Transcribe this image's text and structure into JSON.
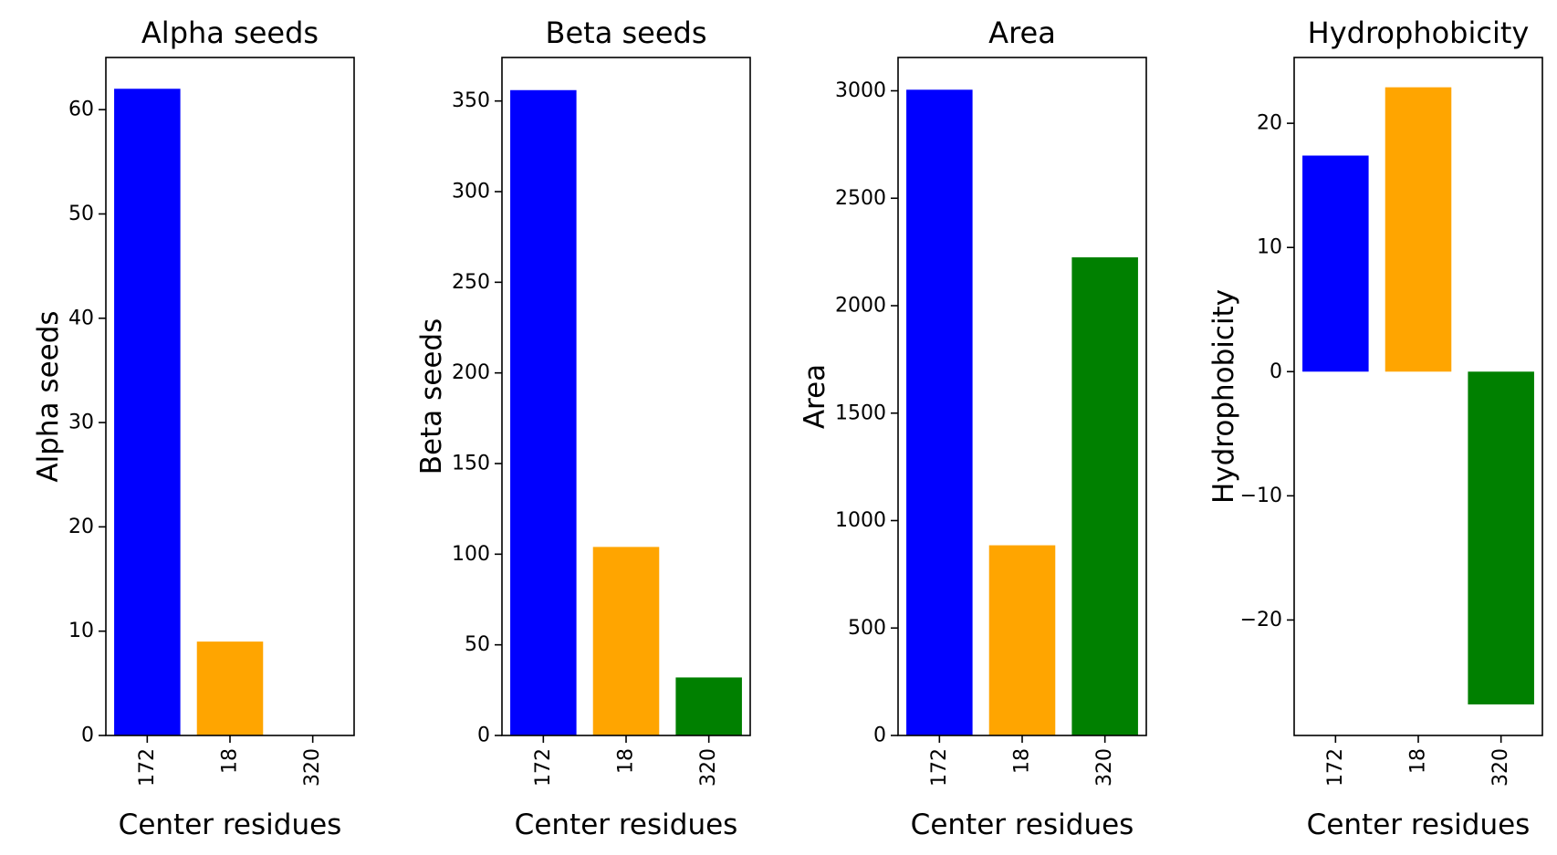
{
  "chart_data": [
    {
      "type": "bar",
      "title": "Alpha seeds",
      "xlabel": "Center residues",
      "ylabel": "Alpha seeds",
      "categories": [
        "172",
        "18",
        "320"
      ],
      "values": [
        62,
        9,
        0
      ],
      "colors": [
        "#0000ff",
        "#ffa500",
        "#008000"
      ],
      "ylim": [
        0,
        65
      ],
      "yticks": [
        0,
        10,
        20,
        30,
        40,
        50,
        60
      ],
      "ytick_labels": [
        "0",
        "10",
        "20",
        "30",
        "40",
        "50",
        "60"
      ],
      "grid": false,
      "tick_label_rotation": 90
    },
    {
      "type": "bar",
      "title": "Beta seeds",
      "xlabel": "Center residues",
      "ylabel": "Beta seeds",
      "categories": [
        "172",
        "18",
        "320"
      ],
      "values": [
        356,
        104,
        32
      ],
      "colors": [
        "#0000ff",
        "#ffa500",
        "#008000"
      ],
      "ylim": [
        0,
        374
      ],
      "yticks": [
        0,
        50,
        100,
        150,
        200,
        250,
        300,
        350
      ],
      "ytick_labels": [
        "0",
        "50",
        "100",
        "150",
        "200",
        "250",
        "300",
        "350"
      ],
      "grid": false,
      "tick_label_rotation": 90
    },
    {
      "type": "bar",
      "title": "Area",
      "xlabel": "Center residues",
      "ylabel": "Area",
      "categories": [
        "172",
        "18",
        "320"
      ],
      "values": [
        3005,
        885,
        2225
      ],
      "colors": [
        "#0000ff",
        "#ffa500",
        "#008000"
      ],
      "ylim": [
        0,
        3155
      ],
      "yticks": [
        0,
        500,
        1000,
        1500,
        2000,
        2500,
        3000
      ],
      "ytick_labels": [
        "0",
        "500",
        "1000",
        "1500",
        "2000",
        "2500",
        "3000"
      ],
      "grid": false,
      "tick_label_rotation": 90
    },
    {
      "type": "bar",
      "title": "Hydrophobicity",
      "xlabel": "Center residues",
      "ylabel": "Hydrophobicity",
      "categories": [
        "172",
        "18",
        "320"
      ],
      "values": [
        17.4,
        22.9,
        -26.8
      ],
      "colors": [
        "#0000ff",
        "#ffa500",
        "#008000"
      ],
      "ylim": [
        -29.3,
        25.3
      ],
      "yticks": [
        -20,
        -10,
        0,
        10,
        20
      ],
      "ytick_labels": [
        "−20",
        "−10",
        "0",
        "10",
        "20"
      ],
      "grid": false,
      "tick_label_rotation": 90
    }
  ]
}
